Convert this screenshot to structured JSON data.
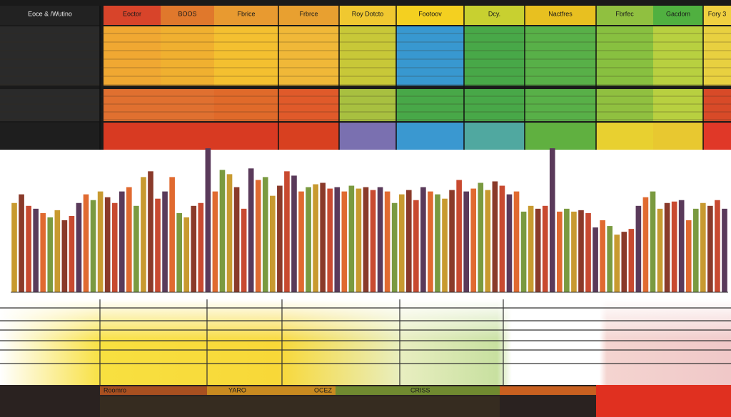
{
  "header": {
    "columns": [
      "Eoce & /Wutino",
      "Eoctor",
      "BOOS",
      "Fbrice",
      "Frbrce",
      "Roy Dotcto",
      "Footoov",
      "Dcy.",
      "Nactfres",
      "Fbrfec",
      "Gacdom",
      "Fory 3"
    ]
  },
  "chart_data": {
    "type": "bar",
    "values": [
      62,
      68,
      60,
      58,
      55,
      52,
      57,
      50,
      53,
      62,
      68,
      64,
      70,
      66,
      62,
      70,
      73,
      60,
      80,
      84,
      65,
      70,
      80,
      55,
      52,
      60,
      62,
      100,
      70,
      85,
      82,
      73,
      58,
      86,
      78,
      80,
      67,
      74,
      84,
      81,
      70,
      73,
      75,
      76,
      72,
      73,
      70,
      74,
      72,
      73,
      71,
      73,
      70,
      62,
      68,
      71,
      64,
      73,
      70,
      68,
      65,
      71,
      78,
      70,
      72,
      76,
      71,
      77,
      74,
      68,
      70,
      56,
      60,
      58,
      60,
      100,
      56,
      58,
      56,
      57,
      55,
      45,
      50,
      46,
      40,
      42,
      44,
      60,
      66,
      70,
      58,
      62,
      63,
      64,
      50,
      58,
      62,
      60,
      64,
      58
    ],
    "ylim": [
      0,
      100
    ],
    "palette": [
      "#c89a30",
      "#8a3a2a",
      "#c84a30",
      "#5a3a5a",
      "#e06a30",
      "#7a9a40"
    ]
  },
  "footer": {
    "labels": [
      "Roomro",
      "YARO",
      "OCEZ",
      "CRISS"
    ]
  }
}
